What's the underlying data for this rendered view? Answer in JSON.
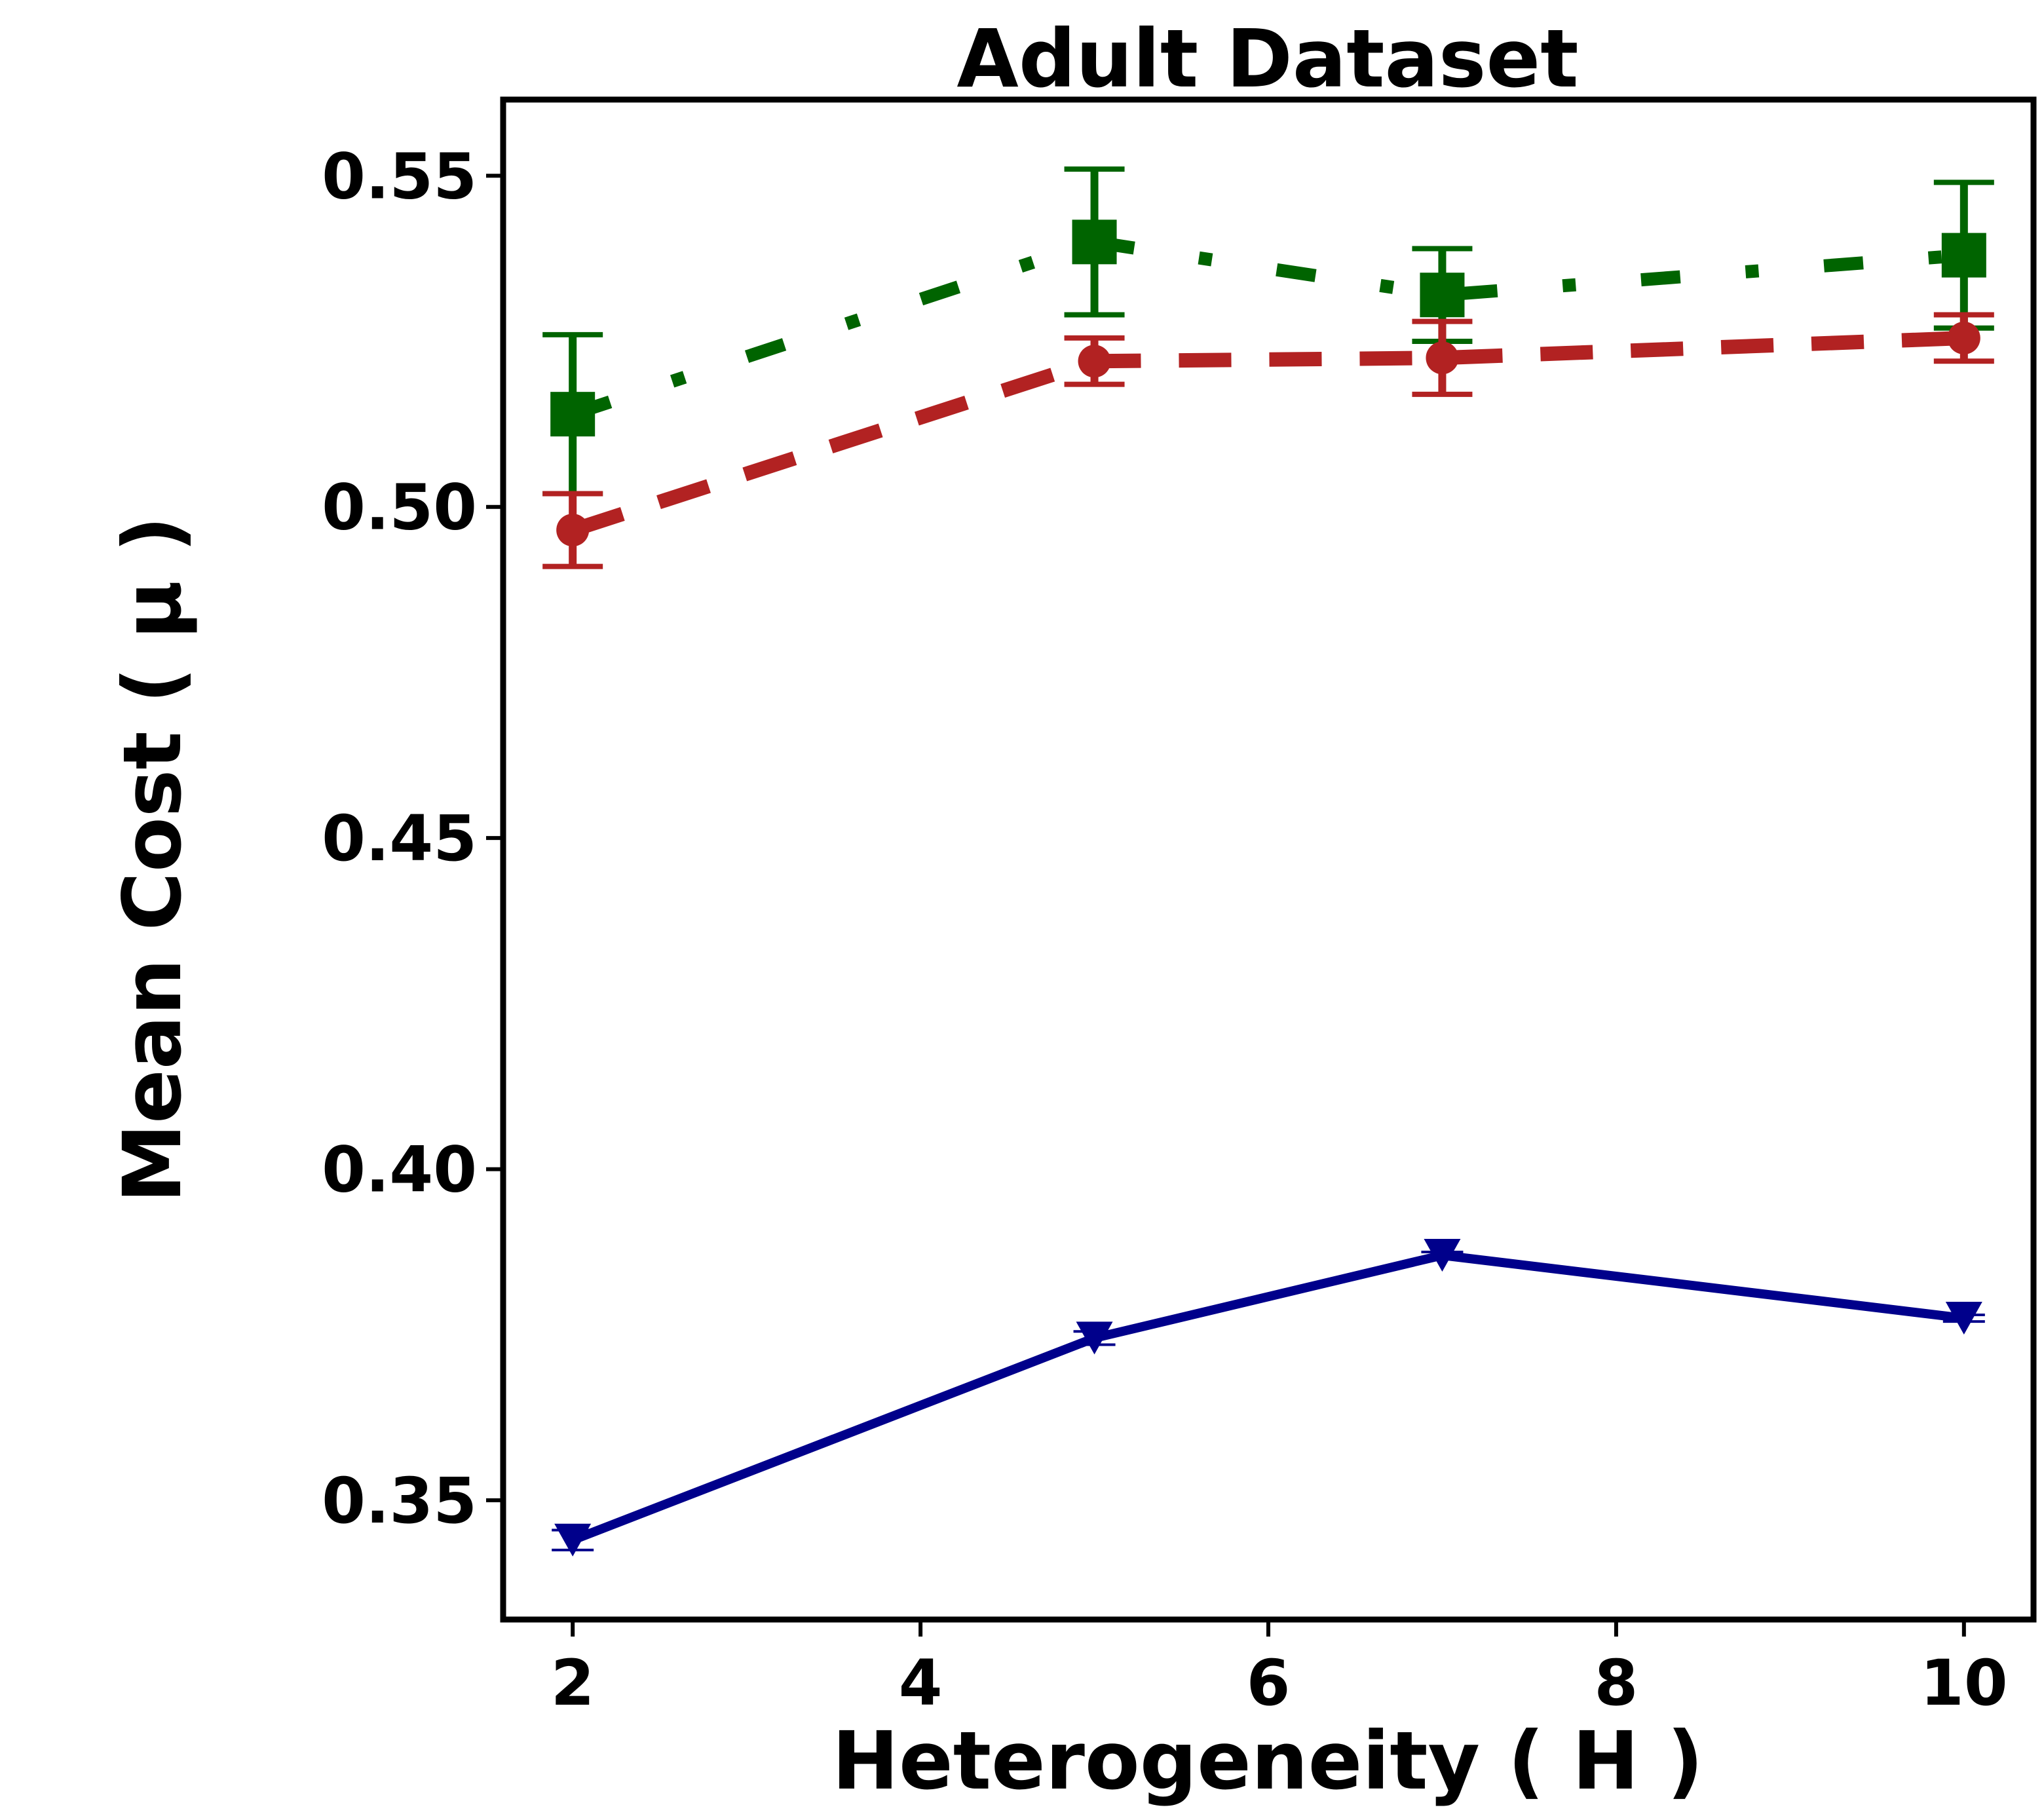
{
  "chart_data": {
    "type": "line",
    "title": "Adult Dataset",
    "xlabel": "Heterogeneity ( H )",
    "ylabel": "Mean Cost ( μ )",
    "xlim": [
      1.6,
      10.4
    ],
    "ylim": [
      0.332,
      0.5615
    ],
    "xticks": [
      2,
      4,
      6,
      8,
      10
    ],
    "xtick_labels": [
      "2",
      "4",
      "6",
      "8",
      "10"
    ],
    "yticks": [
      0.35,
      0.4,
      0.45,
      0.5,
      0.55
    ],
    "ytick_labels": [
      "0.35",
      "0.40",
      "0.45",
      "0.50",
      "0.55"
    ],
    "grid": false,
    "x": [
      2,
      5,
      7,
      10
    ],
    "series": [
      {
        "name": "green dash-dot (square markers)",
        "color": "#006400",
        "marker": "square",
        "linestyle": "dashdot",
        "values": [
          0.514,
          0.54,
          0.532,
          0.538
        ],
        "errors": [
          0.012,
          0.011,
          0.007,
          0.011
        ]
      },
      {
        "name": "red dashed (circle markers)",
        "color": "#b22222",
        "marker": "circle",
        "linestyle": "dashed",
        "values": [
          0.4965,
          0.522,
          0.5225,
          0.5255
        ],
        "errors": [
          0.0055,
          0.0035,
          0.0055,
          0.0035
        ]
      },
      {
        "name": "blue solid (triangle markers)",
        "color": "#00008b",
        "marker": "triangle-down",
        "linestyle": "solid",
        "values": [
          0.344,
          0.3745,
          0.387,
          0.3775
        ],
        "errors": [
          0.0015,
          0.001,
          0.0005,
          0.0005
        ]
      }
    ]
  }
}
